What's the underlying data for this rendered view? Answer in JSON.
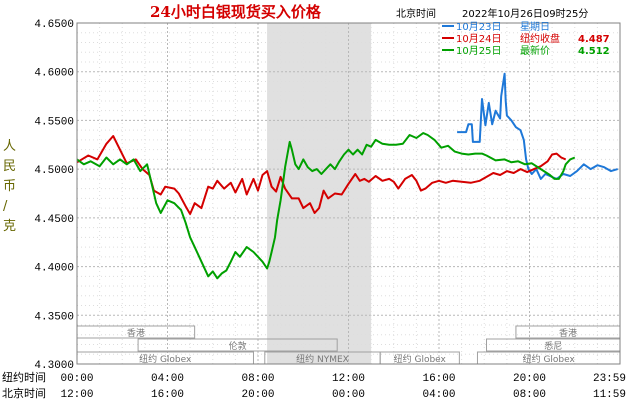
{
  "chart_data": {
    "type": "line",
    "title": "24小时白银现货买入价格",
    "subtitle_timezone": "北京时间",
    "timestamp": "2022年10月26日09时25分",
    "ylabel": "人民币/克",
    "ylim": [
      4.3,
      4.65
    ],
    "yticks": [
      "4.3000",
      "4.3500",
      "4.4000",
      "4.4500",
      "4.5000",
      "4.5500",
      "4.6000",
      "4.6500"
    ],
    "xlim": [
      0,
      24
    ],
    "x_rows": [
      {
        "label": "纽约时间",
        "ticks": [
          "00:00",
          "04:00",
          "08:00",
          "12:00",
          "16:00",
          "20:00",
          "23:59"
        ]
      },
      {
        "label": "北京时间",
        "ticks": [
          "12:00",
          "16:00",
          "20:00",
          "00:00",
          "04:00",
          "08:00",
          "11:59"
        ]
      }
    ],
    "grid": true,
    "legend": [
      {
        "date": "10月23日",
        "text": "星期日",
        "color": "#1e78d8"
      },
      {
        "date": "10月24日",
        "text": "纽约收盘",
        "value": "4.487",
        "color": "#d40000"
      },
      {
        "date": "10月25日",
        "text": "最新价",
        "value": "4.512",
        "color": "#00a000"
      }
    ],
    "highlight_band": [
      8.4,
      13
    ],
    "sessions": [
      {
        "label": "香港",
        "start": 0,
        "end": 5.2,
        "row": 1
      },
      {
        "label": "伦敦",
        "start": 2.7,
        "end": 11.5,
        "row": 2
      },
      {
        "label": "纽约 Globex",
        "start": 0,
        "end": 7.8,
        "row": 3
      },
      {
        "label": "纽约 NYMEX",
        "start": 8.3,
        "end": 13.4,
        "row": 3
      },
      {
        "label": "纽约 Globex",
        "start": 13.4,
        "end": 16.9,
        "row": 3
      },
      {
        "label": "香港",
        "start": 19.4,
        "end": 24,
        "row": 1
      },
      {
        "label": "悉尼",
        "start": 18.1,
        "end": 24,
        "row": 2
      },
      {
        "label": "纽约 Globex",
        "start": 17.7,
        "end": 24,
        "row": 3
      }
    ],
    "series": [
      {
        "name": "10月23日",
        "color": "#1e78d8",
        "points": [
          [
            16.8,
            4.538
          ],
          [
            17.2,
            4.538
          ],
          [
            17.3,
            4.546
          ],
          [
            17.45,
            4.546
          ],
          [
            17.5,
            4.528
          ],
          [
            17.8,
            4.528
          ],
          [
            17.9,
            4.572
          ],
          [
            18.05,
            4.545
          ],
          [
            18.2,
            4.568
          ],
          [
            18.35,
            4.546
          ],
          [
            18.5,
            4.56
          ],
          [
            18.7,
            4.552
          ],
          [
            18.75,
            4.575
          ],
          [
            18.9,
            4.598
          ],
          [
            18.95,
            4.57
          ],
          [
            19.0,
            4.555
          ],
          [
            19.2,
            4.55
          ],
          [
            19.4,
            4.543
          ],
          [
            19.6,
            4.54
          ],
          [
            19.75,
            4.53
          ],
          [
            19.85,
            4.51
          ],
          [
            19.95,
            4.5
          ],
          [
            20.1,
            4.495
          ],
          [
            20.3,
            4.5
          ],
          [
            20.5,
            4.49
          ],
          [
            20.7,
            4.495
          ],
          [
            20.9,
            4.493
          ],
          [
            21.2,
            4.49
          ],
          [
            21.5,
            4.495
          ],
          [
            21.8,
            4.493
          ],
          [
            22.1,
            4.498
          ],
          [
            22.4,
            4.505
          ],
          [
            22.7,
            4.5
          ],
          [
            23.0,
            4.504
          ],
          [
            23.3,
            4.502
          ],
          [
            23.6,
            4.498
          ],
          [
            23.9,
            4.5
          ]
        ]
      },
      {
        "name": "10月24日",
        "color": "#d40000",
        "points": [
          [
            0,
            4.507
          ],
          [
            0.5,
            4.514
          ],
          [
            0.9,
            4.51
          ],
          [
            1.3,
            4.526
          ],
          [
            1.6,
            4.534
          ],
          [
            1.9,
            4.52
          ],
          [
            2.2,
            4.506
          ],
          [
            2.6,
            4.51
          ],
          [
            2.9,
            4.5
          ],
          [
            3.2,
            4.494
          ],
          [
            3.4,
            4.478
          ],
          [
            3.7,
            4.474
          ],
          [
            3.9,
            4.482
          ],
          [
            4.3,
            4.48
          ],
          [
            4.5,
            4.475
          ],
          [
            4.8,
            4.462
          ],
          [
            5.0,
            4.454
          ],
          [
            5.2,
            4.465
          ],
          [
            5.5,
            4.46
          ],
          [
            5.8,
            4.482
          ],
          [
            6.0,
            4.48
          ],
          [
            6.2,
            4.488
          ],
          [
            6.5,
            4.48
          ],
          [
            6.8,
            4.486
          ],
          [
            7.0,
            4.476
          ],
          [
            7.3,
            4.49
          ],
          [
            7.5,
            4.474
          ],
          [
            7.8,
            4.49
          ],
          [
            8.0,
            4.478
          ],
          [
            8.2,
            4.494
          ],
          [
            8.4,
            4.498
          ],
          [
            8.6,
            4.482
          ],
          [
            8.8,
            4.477
          ],
          [
            9.0,
            4.492
          ],
          [
            9.2,
            4.48
          ],
          [
            9.5,
            4.47
          ],
          [
            9.8,
            4.47
          ],
          [
            10.0,
            4.46
          ],
          [
            10.3,
            4.465
          ],
          [
            10.5,
            4.455
          ],
          [
            10.7,
            4.46
          ],
          [
            10.9,
            4.478
          ],
          [
            11.1,
            4.47
          ],
          [
            11.4,
            4.475
          ],
          [
            11.7,
            4.474
          ],
          [
            12.0,
            4.485
          ],
          [
            12.3,
            4.495
          ],
          [
            12.5,
            4.488
          ],
          [
            12.7,
            4.49
          ],
          [
            12.9,
            4.487
          ],
          [
            13.2,
            4.493
          ],
          [
            13.5,
            4.488
          ],
          [
            13.8,
            4.49
          ],
          [
            14.0,
            4.487
          ],
          [
            14.2,
            4.48
          ],
          [
            14.5,
            4.49
          ],
          [
            14.8,
            4.494
          ],
          [
            15.0,
            4.488
          ],
          [
            15.2,
            4.478
          ],
          [
            15.4,
            4.48
          ],
          [
            15.7,
            4.486
          ],
          [
            16.0,
            4.488
          ],
          [
            16.3,
            4.486
          ],
          [
            16.6,
            4.488
          ],
          [
            17.0,
            4.487
          ],
          [
            17.4,
            4.486
          ],
          [
            17.8,
            4.488
          ],
          [
            18.1,
            4.492
          ],
          [
            18.4,
            4.496
          ],
          [
            18.7,
            4.494
          ],
          [
            19.0,
            4.498
          ],
          [
            19.3,
            4.496
          ],
          [
            19.6,
            4.5
          ],
          [
            19.9,
            4.497
          ],
          [
            20.2,
            4.5
          ],
          [
            20.5,
            4.503
          ],
          [
            20.8,
            4.508
          ],
          [
            21.0,
            4.515
          ],
          [
            21.2,
            4.516
          ],
          [
            21.4,
            4.512
          ],
          [
            21.6,
            4.51
          ]
        ]
      },
      {
        "name": "10月25日",
        "color": "#00a000",
        "points": [
          [
            0,
            4.51
          ],
          [
            0.3,
            4.505
          ],
          [
            0.6,
            4.508
          ],
          [
            1.0,
            4.503
          ],
          [
            1.3,
            4.512
          ],
          [
            1.6,
            4.505
          ],
          [
            1.9,
            4.51
          ],
          [
            2.2,
            4.505
          ],
          [
            2.5,
            4.51
          ],
          [
            2.8,
            4.498
          ],
          [
            3.1,
            4.505
          ],
          [
            3.3,
            4.485
          ],
          [
            3.5,
            4.465
          ],
          [
            3.7,
            4.455
          ],
          [
            4.0,
            4.468
          ],
          [
            4.3,
            4.465
          ],
          [
            4.6,
            4.458
          ],
          [
            4.8,
            4.445
          ],
          [
            5.0,
            4.43
          ],
          [
            5.2,
            4.42
          ],
          [
            5.4,
            4.41
          ],
          [
            5.6,
            4.4
          ],
          [
            5.8,
            4.39
          ],
          [
            6.0,
            4.395
          ],
          [
            6.2,
            4.388
          ],
          [
            6.4,
            4.393
          ],
          [
            6.6,
            4.396
          ],
          [
            6.8,
            4.405
          ],
          [
            7.0,
            4.415
          ],
          [
            7.2,
            4.41
          ],
          [
            7.5,
            4.42
          ],
          [
            7.8,
            4.415
          ],
          [
            8.0,
            4.41
          ],
          [
            8.2,
            4.405
          ],
          [
            8.4,
            4.398
          ],
          [
            8.5,
            4.405
          ],
          [
            8.6,
            4.415
          ],
          [
            8.75,
            4.43
          ],
          [
            8.85,
            4.448
          ],
          [
            9.0,
            4.468
          ],
          [
            9.1,
            4.485
          ],
          [
            9.2,
            4.502
          ],
          [
            9.3,
            4.515
          ],
          [
            9.4,
            4.528
          ],
          [
            9.5,
            4.52
          ],
          [
            9.65,
            4.505
          ],
          [
            9.8,
            4.5
          ],
          [
            10.0,
            4.51
          ],
          [
            10.2,
            4.502
          ],
          [
            10.4,
            4.498
          ],
          [
            10.6,
            4.5
          ],
          [
            10.8,
            4.495
          ],
          [
            11.0,
            4.5
          ],
          [
            11.2,
            4.505
          ],
          [
            11.4,
            4.5
          ],
          [
            11.6,
            4.508
          ],
          [
            11.8,
            4.515
          ],
          [
            12.0,
            4.52
          ],
          [
            12.2,
            4.515
          ],
          [
            12.4,
            4.52
          ],
          [
            12.6,
            4.515
          ],
          [
            12.8,
            4.525
          ],
          [
            13.0,
            4.523
          ],
          [
            13.2,
            4.53
          ],
          [
            13.5,
            4.526
          ],
          [
            13.8,
            4.525
          ],
          [
            14.1,
            4.525
          ],
          [
            14.4,
            4.526
          ],
          [
            14.7,
            4.535
          ],
          [
            15.0,
            4.532
          ],
          [
            15.3,
            4.537
          ],
          [
            15.5,
            4.535
          ],
          [
            15.8,
            4.53
          ],
          [
            16.1,
            4.522
          ],
          [
            16.4,
            4.524
          ],
          [
            16.7,
            4.518
          ],
          [
            17.0,
            4.516
          ],
          [
            17.3,
            4.515
          ],
          [
            17.6,
            4.516
          ],
          [
            17.9,
            4.516
          ],
          [
            18.1,
            4.514
          ],
          [
            18.5,
            4.509
          ],
          [
            18.9,
            4.51
          ],
          [
            19.2,
            4.507
          ],
          [
            19.5,
            4.508
          ],
          [
            19.8,
            4.505
          ],
          [
            20.1,
            4.506
          ],
          [
            20.5,
            4.5
          ],
          [
            20.9,
            4.494
          ],
          [
            21.1,
            4.49
          ],
          [
            21.3,
            4.49
          ],
          [
            21.5,
            4.498
          ],
          [
            21.6,
            4.505
          ],
          [
            21.8,
            4.51
          ],
          [
            22.0,
            4.512
          ]
        ]
      }
    ]
  }
}
